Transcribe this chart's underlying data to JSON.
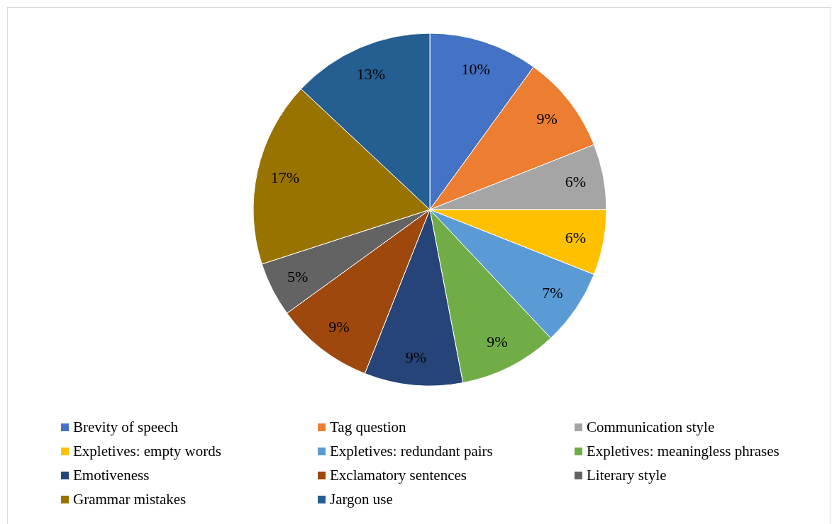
{
  "chart_data": {
    "type": "pie",
    "categories": [
      "Brevity of speech",
      "Tag question",
      "Communication style",
      "Expletives: empty words",
      "Expletives: redundant pairs",
      "Expletives: meaningless phrases",
      "Emotiveness",
      "Exclamatory sentences",
      "Literary style",
      "Grammar mistakes",
      "Jargon use"
    ],
    "values": [
      10,
      9,
      6,
      6,
      7,
      9,
      9,
      9,
      5,
      17,
      13
    ],
    "value_labels": [
      "10%",
      "9%",
      "6%",
      "6%",
      "7%",
      "9%",
      "9%",
      "9%",
      "5%",
      "17%",
      "13%"
    ],
    "colors": [
      "#4472c4",
      "#ed7d31",
      "#a5a5a5",
      "#ffc000",
      "#5b9bd5",
      "#70ad47",
      "#264478",
      "#9e480e",
      "#636363",
      "#997300",
      "#255e91"
    ],
    "legend": "bottom"
  }
}
